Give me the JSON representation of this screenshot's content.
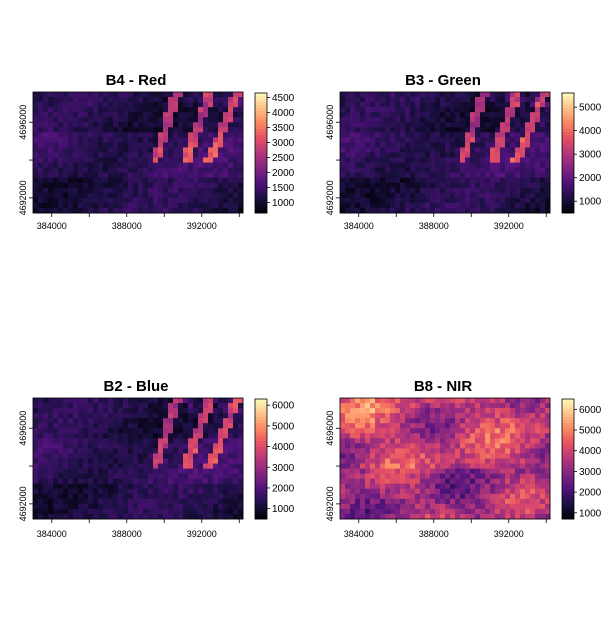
{
  "chart_data": [
    {
      "type": "heatmap",
      "title": "B4 - Red",
      "x_ticks": [
        384000,
        388000,
        392000
      ],
      "y_ticks": [
        4692000,
        4696000
      ],
      "colorbar": {
        "ticks": [
          1000,
          1500,
          2000,
          2500,
          3000,
          3500,
          4000,
          4500
        ],
        "range": [
          650,
          4650
        ],
        "palette": "magma"
      },
      "raster_character": "dark, bright streaks top right"
    },
    {
      "type": "heatmap",
      "title": "B3 - Green",
      "x_ticks": [
        384000,
        388000,
        392000
      ],
      "y_ticks": [
        4692000,
        4696000
      ],
      "colorbar": {
        "ticks": [
          1000,
          2000,
          3000,
          4000,
          5000
        ],
        "range": [
          500,
          5600
        ],
        "palette": "magma"
      },
      "raster_character": "dark, bright streaks top right"
    },
    {
      "type": "heatmap",
      "title": "B2 - Blue",
      "x_ticks": [
        384000,
        388000,
        392000
      ],
      "y_ticks": [
        4692000,
        4696000
      ],
      "colorbar": {
        "ticks": [
          1000,
          2000,
          3000,
          4000,
          5000,
          6000
        ],
        "range": [
          500,
          6300
        ],
        "palette": "magma"
      },
      "raster_character": "dark, bright streaks top right"
    },
    {
      "type": "heatmap",
      "title": "B8 - NIR",
      "x_ticks": [
        384000,
        388000,
        392000
      ],
      "y_ticks": [
        4692000,
        4696000
      ],
      "colorbar": {
        "ticks": [
          1000,
          2000,
          3000,
          4000,
          5000,
          6000
        ],
        "range": [
          700,
          6500
        ],
        "palette": "magma"
      },
      "raster_character": "bright, purple-orange texture"
    }
  ],
  "colors": {
    "magma": [
      "#000004",
      "#1c1044",
      "#4f127b",
      "#812581",
      "#b5367a",
      "#e55064",
      "#fb8761",
      "#fec287",
      "#fcfdbf"
    ],
    "background": "#ffffff"
  }
}
